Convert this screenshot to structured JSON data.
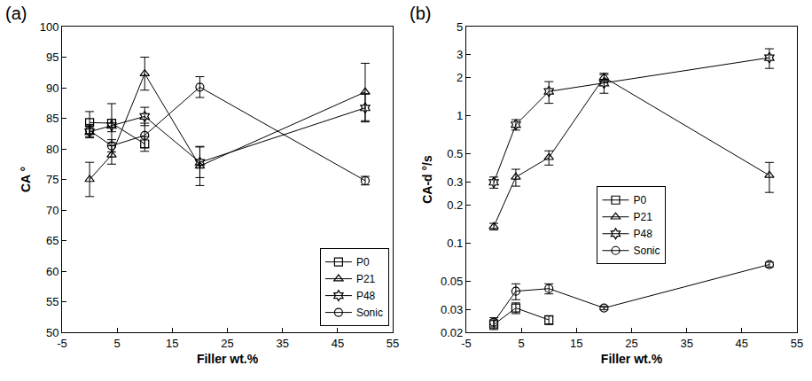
{
  "chart_data": [
    {
      "type": "line",
      "title": "(a)",
      "x_label": "Filler wt.%",
      "y_label": "CA °",
      "xlim": [
        -5,
        55
      ],
      "xticks": [
        -5,
        5,
        15,
        25,
        35,
        45,
        55
      ],
      "ylim": [
        50,
        100
      ],
      "yticks": [
        50,
        55,
        60,
        65,
        70,
        75,
        80,
        85,
        90,
        95,
        100
      ],
      "grid": false,
      "legend": "lower-right",
      "series": [
        {
          "name": "P0",
          "color": "#000000",
          "marker": "square",
          "line_style": "solid",
          "x": [
            0,
            4,
            10
          ],
          "values": [
            84.3,
            84.2,
            80.8
          ],
          "errors": [
            1.8,
            3.2,
            1.2
          ]
        },
        {
          "name": "P21",
          "color": "#000000",
          "marker": "triangle-up",
          "line_style": "solid",
          "x": [
            0,
            4,
            10,
            20,
            50
          ],
          "values": [
            75.0,
            79.0,
            92.3,
            77.2,
            89.3
          ],
          "errors": [
            2.8,
            1.5,
            2.7,
            3.2,
            4.7
          ]
        },
        {
          "name": "P48",
          "color": "#000000",
          "marker": "hexagram",
          "line_style": "solid",
          "x": [
            0,
            4,
            10,
            20,
            50
          ],
          "values": [
            82.8,
            83.8,
            85.3,
            77.8,
            86.7
          ],
          "errors": [
            1.0,
            1.0,
            1.5,
            2.5,
            2.3
          ]
        },
        {
          "name": "Sonic",
          "color": "#000000",
          "marker": "circle",
          "line_style": "solid",
          "x": [
            0,
            4,
            10,
            20,
            50
          ],
          "values": [
            83.0,
            80.5,
            82.2,
            90.1,
            74.8
          ],
          "errors": [
            1.0,
            1.0,
            2.0,
            1.7,
            0.7
          ]
        }
      ]
    },
    {
      "type": "line",
      "title": "(b)",
      "x_label": "Filler wt.%",
      "y_label": "CA-d °/s",
      "log": "y",
      "xlim": [
        -5,
        55
      ],
      "xticks": [
        -5,
        5,
        15,
        25,
        35,
        45,
        55
      ],
      "ylim": [
        0.02,
        5
      ],
      "yticks": [
        0.02,
        0.03,
        0.05,
        0.1,
        0.2,
        0.3,
        0.5,
        1,
        2,
        3,
        5
      ],
      "grid": false,
      "legend": "center",
      "series": [
        {
          "name": "P0",
          "color": "#000000",
          "marker": "square",
          "line_style": "solid",
          "x": [
            0,
            4,
            10
          ],
          "values": [
            0.023,
            0.031,
            0.025
          ],
          "errors": [
            0.002,
            0.003,
            0.002
          ]
        },
        {
          "name": "P21",
          "color": "#000000",
          "marker": "triangle-up",
          "line_style": "solid",
          "x": [
            0,
            4,
            10,
            20,
            50
          ],
          "values": [
            0.135,
            0.33,
            0.47,
            2.0,
            0.34
          ],
          "errors": [
            0.008,
            0.05,
            0.06,
            0.15,
            0.09
          ]
        },
        {
          "name": "P48",
          "color": "#000000",
          "marker": "hexagram",
          "line_style": "solid",
          "x": [
            0,
            4,
            10,
            20,
            50
          ],
          "values": [
            0.3,
            0.85,
            1.55,
            1.8,
            2.85
          ],
          "errors": [
            0.03,
            0.08,
            0.3,
            0.3,
            0.5
          ]
        },
        {
          "name": "Sonic",
          "color": "#000000",
          "marker": "circle",
          "line_style": "solid",
          "x": [
            0,
            4,
            10,
            20,
            50
          ],
          "values": [
            0.024,
            0.042,
            0.044,
            0.031,
            0.068
          ],
          "errors": [
            0.002,
            0.006,
            0.004,
            0.001,
            0.003
          ]
        }
      ]
    }
  ]
}
